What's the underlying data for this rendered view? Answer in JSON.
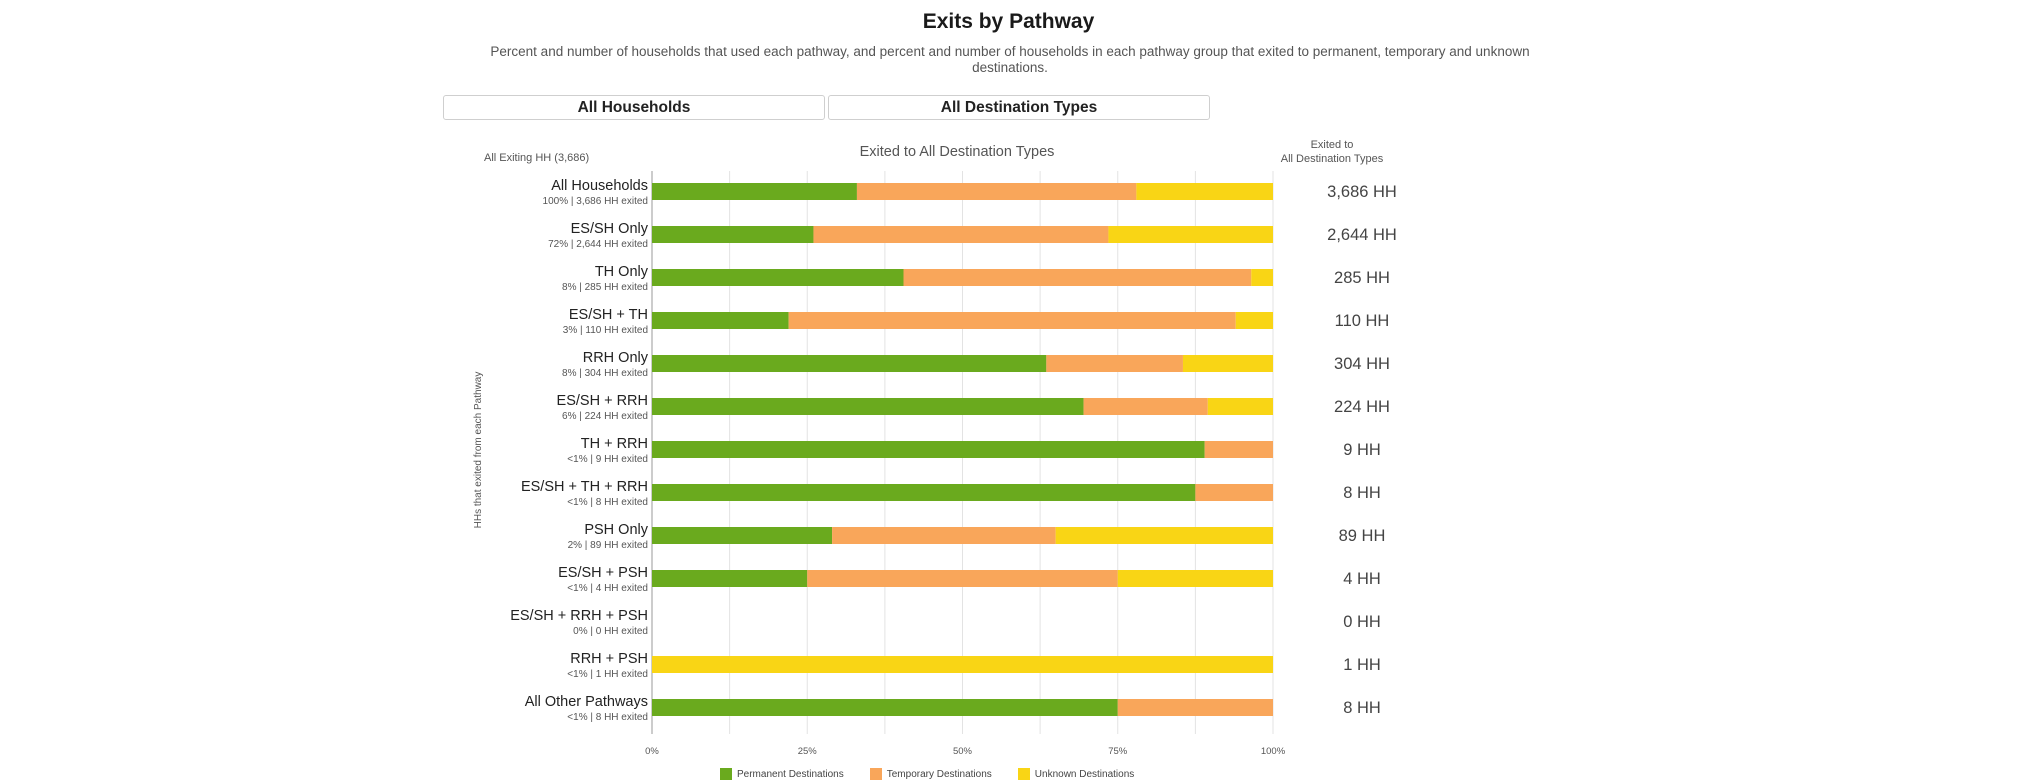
{
  "title": "Exits by Pathway",
  "subtitle": "Percent and number of households that used each pathway, and percent and number of households in each pathway group that exited to permanent, temporary and unknown destinations.",
  "controls": {
    "household_filter": "All Households",
    "destination_filter": "All Destination Types"
  },
  "colors": {
    "permanent": "#6aaa1e",
    "temporary": "#f9a65a",
    "unknown": "#f9d515"
  },
  "chart_data": {
    "type": "bar",
    "orientation": "horizontal",
    "stacked": true,
    "title": "Exited to All Destination Types",
    "left_header": "All Exiting HH (3,686)",
    "right_header_line1": "Exited to",
    "right_header_line2": "All Destination Types",
    "ylabel": "HHs that exited from each Pathway",
    "xlim": [
      0,
      100
    ],
    "x_ticks": [
      "0%",
      "25%",
      "50%",
      "75%",
      "100%"
    ],
    "categories": [
      {
        "label": "All Households",
        "sublabel": "100% | 3,686 HH exited",
        "total": "3,686 HH"
      },
      {
        "label": "ES/SH Only",
        "sublabel": "72% | 2,644 HH exited",
        "total": "2,644 HH"
      },
      {
        "label": "TH Only",
        "sublabel": "8% | 285 HH exited",
        "total": "285 HH"
      },
      {
        "label": "ES/SH + TH",
        "sublabel": "3% | 110 HH exited",
        "total": "110 HH"
      },
      {
        "label": "RRH Only",
        "sublabel": "8% | 304 HH exited",
        "total": "304 HH"
      },
      {
        "label": "ES/SH + RRH",
        "sublabel": "6% | 224 HH exited",
        "total": "224 HH"
      },
      {
        "label": "TH + RRH",
        "sublabel": "<1% | 9 HH exited",
        "total": "9 HH"
      },
      {
        "label": "ES/SH + TH + RRH",
        "sublabel": "<1% | 8 HH exited",
        "total": "8 HH"
      },
      {
        "label": "PSH Only",
        "sublabel": "2% | 89 HH exited",
        "total": "89 HH"
      },
      {
        "label": "ES/SH + PSH",
        "sublabel": "<1% | 4 HH exited",
        "total": "4 HH"
      },
      {
        "label": "ES/SH + RRH + PSH",
        "sublabel": "0% | 0 HH exited",
        "total": "0 HH"
      },
      {
        "label": "RRH + PSH",
        "sublabel": "<1% | 1 HH exited",
        "total": "1 HH"
      },
      {
        "label": "All Other Pathways",
        "sublabel": "<1% | 8 HH exited",
        "total": "8 HH"
      }
    ],
    "series": [
      {
        "name": "Permanent Destinations",
        "key": "permanent",
        "values": [
          33,
          26,
          40.5,
          22,
          63.5,
          69.5,
          89,
          87.5,
          29,
          25,
          0,
          0,
          75
        ]
      },
      {
        "name": "Temporary Destinations",
        "key": "temporary",
        "values": [
          45,
          47.5,
          56,
          72,
          22,
          20,
          11,
          12.5,
          36,
          50,
          0,
          0,
          25
        ]
      },
      {
        "name": "Unknown Destinations",
        "key": "unknown",
        "values": [
          22,
          26.5,
          3.5,
          6,
          14.5,
          10.5,
          0,
          0,
          35,
          25,
          0,
          100,
          0
        ]
      }
    ],
    "grid": true,
    "legend_position": "bottom"
  }
}
